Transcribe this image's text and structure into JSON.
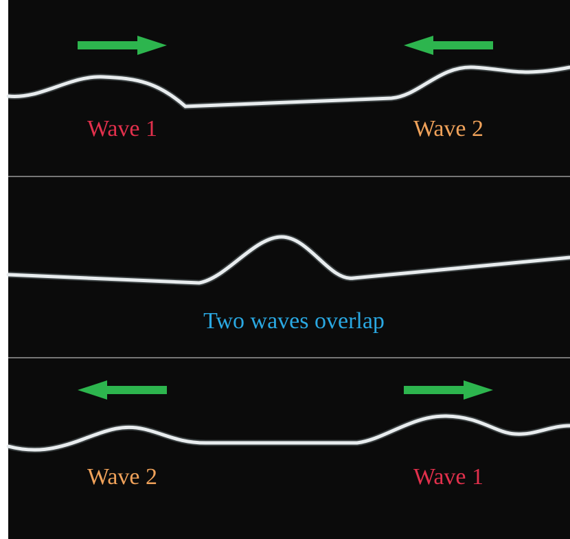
{
  "panels": [
    {
      "labels": [
        "Wave 1",
        "Wave 2"
      ]
    },
    {
      "labels": [
        "Two waves overlap"
      ]
    },
    {
      "labels": [
        "Wave 2",
        "Wave 1"
      ]
    }
  ]
}
